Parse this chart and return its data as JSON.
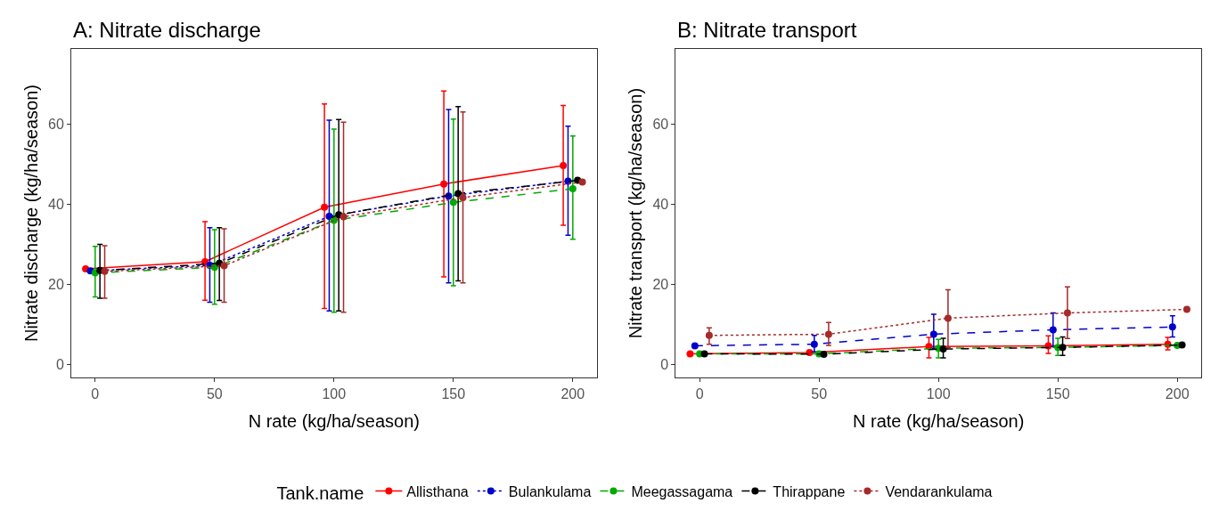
{
  "chart_data": [
    {
      "type": "line",
      "title": "A: Nitrate discharge",
      "xlabel": "N rate (kg/ha/season)",
      "ylabel": "Nitrate discharge (kg/ha/season)",
      "legend_title": "Tank.name",
      "legend": "bottom",
      "grid": false,
      "marker": "circle",
      "xlim": [
        -10,
        210
      ],
      "xticks": [
        0,
        50,
        100,
        150,
        200
      ],
      "ylim": [
        -3.3,
        78.7
      ],
      "yticks": [
        0,
        20,
        40,
        60
      ],
      "series": [
        {
          "name": "Allisthana",
          "color": "#ff0000",
          "line_style": "solid",
          "x": [
            -4,
            46,
            96,
            146,
            196
          ],
          "values": [
            23.8,
            25.6,
            39.2,
            45.0,
            49.6
          ],
          "errors": [
            null,
            [
              16.0,
              35.6
            ],
            [
              13.9,
              65.0
            ],
            [
              21.8,
              68.2
            ],
            [
              34.7,
              64.6
            ]
          ]
        },
        {
          "name": "Bulankulama",
          "color": "#0000cc",
          "line_style": "dotted",
          "x": [
            -2,
            48,
            98,
            148,
            198
          ],
          "values": [
            23.3,
            24.7,
            36.9,
            42.0,
            45.7
          ],
          "errors": [
            null,
            [
              15.5,
              34.1
            ],
            [
              13.3,
              60.9
            ],
            [
              20.3,
              63.6
            ],
            [
              32.2,
              59.4
            ]
          ]
        },
        {
          "name": "Meegassagama",
          "color": "#00aa00",
          "line_style": "dashed",
          "x": [
            0,
            50,
            100,
            150,
            200
          ],
          "values": [
            22.8,
            24.2,
            35.9,
            40.4,
            43.8
          ],
          "errors": [
            [
              16.8,
              29.4
            ],
            [
              15.0,
              33.6
            ],
            [
              13.0,
              58.7
            ],
            [
              19.6,
              61.2
            ],
            [
              31.2,
              57.0
            ]
          ]
        },
        {
          "name": "Thirappane",
          "color": "#000000",
          "line_style": "dashed",
          "x": [
            2,
            52,
            102,
            152,
            202
          ],
          "values": [
            23.4,
            25.2,
            37.3,
            42.6,
            45.9
          ],
          "errors": [
            [
              16.5,
              29.9
            ],
            [
              15.9,
              34.1
            ],
            [
              13.3,
              61.1
            ],
            [
              20.8,
              64.3
            ],
            null
          ]
        },
        {
          "name": "Vendarankulama",
          "color": "#a52a2a",
          "line_style": "dotted",
          "x": [
            4,
            54,
            104,
            154,
            204
          ],
          "values": [
            23.2,
            24.6,
            36.8,
            41.6,
            45.5
          ],
          "errors": [
            [
              16.5,
              29.6
            ],
            [
              15.5,
              33.8
            ],
            [
              13.0,
              60.4
            ],
            [
              20.3,
              63.0
            ],
            null
          ]
        }
      ]
    },
    {
      "type": "line",
      "title": "B: Nitrate transport",
      "xlabel": "N rate (kg/ha/season)",
      "ylabel": "Nitrate transport (kg/ha/season)",
      "grid": false,
      "marker": "circle",
      "xlim": [
        -10,
        210
      ],
      "xticks": [
        0,
        50,
        100,
        150,
        200
      ],
      "ylim": [
        -3.3,
        78.7
      ],
      "yticks": [
        0,
        20,
        40,
        60
      ],
      "series": [
        {
          "color": "#ff0000",
          "line_style": "solid",
          "x": [
            -4,
            46,
            96,
            146,
            196
          ],
          "values": [
            2.6,
            2.9,
            4.4,
            4.6,
            5.0
          ],
          "errors": [
            null,
            null,
            [
              1.6,
              6.7
            ],
            [
              2.7,
              7.1
            ],
            [
              3.6,
              6.7
            ]
          ]
        },
        {
          "color": "#0000cc",
          "line_style": "dashed",
          "x": [
            -2,
            48,
            98,
            148,
            198
          ],
          "values": [
            4.6,
            5.0,
            7.5,
            8.6,
            9.3
          ],
          "errors": [
            null,
            [
              3.1,
              7.2
            ],
            [
              4.0,
              12.5
            ],
            [
              4.4,
              12.8
            ],
            [
              6.8,
              12.1
            ]
          ]
        },
        {
          "color": "#00aa00",
          "line_style": "dashed",
          "x": [
            0,
            50,
            100,
            150,
            200
          ],
          "values": [
            2.6,
            2.6,
            4.0,
            4.2,
            4.7
          ],
          "errors": [
            null,
            null,
            [
              1.6,
              6.2
            ],
            [
              2.2,
              6.5
            ],
            null
          ]
        },
        {
          "color": "#000000",
          "line_style": "dashed",
          "x": [
            2,
            52,
            102,
            152,
            202
          ],
          "values": [
            2.6,
            2.5,
            3.8,
            4.2,
            4.8
          ],
          "errors": [
            null,
            null,
            [
              1.6,
              6.5
            ],
            [
              2.2,
              6.8
            ],
            null
          ]
        },
        {
          "color": "#a52a2a",
          "line_style": "dotted",
          "x": [
            4,
            54,
            104,
            154,
            204
          ],
          "values": [
            7.2,
            7.5,
            11.5,
            12.8,
            13.7
          ],
          "errors": [
            [
              5.0,
              9.1
            ],
            [
              4.7,
              10.4
            ],
            [
              4.2,
              18.6
            ],
            [
              6.4,
              19.3
            ],
            null
          ]
        }
      ]
    }
  ]
}
